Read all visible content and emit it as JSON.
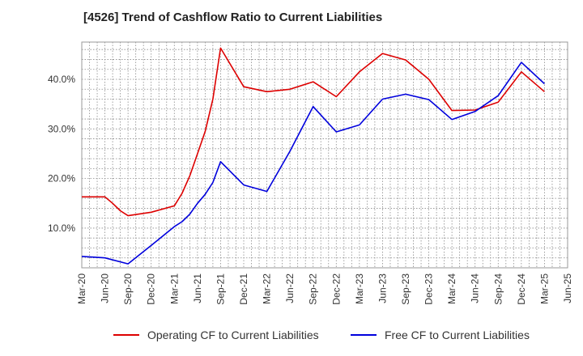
{
  "chart_data": {
    "type": "line",
    "title": "[4526]  Trend of Cashflow Ratio to Current Liabilities",
    "x_ticks": [
      "Mar-20",
      "Jun-20",
      "Sep-20",
      "Dec-20",
      "Mar-21",
      "Jun-21",
      "Sep-21",
      "Dec-21",
      "Mar-22",
      "Jun-22",
      "Sep-22",
      "Dec-22",
      "Mar-23",
      "Jun-23",
      "Sep-23",
      "Dec-23",
      "Mar-24",
      "Jun-24",
      "Sep-24",
      "Dec-24",
      "Mar-25",
      "Jun-25"
    ],
    "y_ticks": [
      "10.0%",
      "20.0%",
      "30.0%",
      "40.0%"
    ],
    "y_tick_values": [
      10,
      20,
      30,
      40
    ],
    "ylim": [
      2,
      47.5
    ],
    "xlim": [
      "Mar-20",
      "Jun-25"
    ],
    "grid": true,
    "legend_position": "bottom",
    "series": [
      {
        "name": "Operating CF to Current Liabilities",
        "color": "#dd0000",
        "points": [
          [
            "Mar-20",
            16.3
          ],
          [
            "Jun-20",
            16.3
          ],
          [
            "Jul-20",
            15.0
          ],
          [
            "Aug-20",
            13.5
          ],
          [
            "Sep-20",
            12.5
          ],
          [
            "Dec-20",
            13.2
          ],
          [
            "Mar-21",
            14.5
          ],
          [
            "Apr-21",
            17.0
          ],
          [
            "May-21",
            20.5
          ],
          [
            "Jun-21",
            25.0
          ],
          [
            "Jul-21",
            29.5
          ],
          [
            "Aug-21",
            36.0
          ],
          [
            "Sep-21",
            46.3
          ],
          [
            "Dec-21",
            38.5
          ],
          [
            "Mar-22",
            37.5
          ],
          [
            "Jun-22",
            38.0
          ],
          [
            "Sep-22",
            39.5
          ],
          [
            "Dec-22",
            36.5
          ],
          [
            "Mar-23",
            41.5
          ],
          [
            "Jun-23",
            45.2
          ],
          [
            "Sep-23",
            43.9
          ],
          [
            "Dec-23",
            40.0
          ],
          [
            "Mar-24",
            33.7
          ],
          [
            "Jun-24",
            33.8
          ],
          [
            "Sep-24",
            35.4
          ],
          [
            "Dec-24",
            41.5
          ],
          [
            "Mar-25",
            37.5
          ]
        ]
      },
      {
        "name": "Free CF to Current Liabilities",
        "color": "#0000dd",
        "points": [
          [
            "Mar-20",
            4.3
          ],
          [
            "Jun-20",
            4.0
          ],
          [
            "Sep-20",
            2.8
          ],
          [
            "Dec-20",
            6.5
          ],
          [
            "Mar-21",
            10.3
          ],
          [
            "Apr-21",
            11.3
          ],
          [
            "May-21",
            12.8
          ],
          [
            "Jun-21",
            15.0
          ],
          [
            "Jul-21",
            16.8
          ],
          [
            "Aug-21",
            19.2
          ],
          [
            "Sep-21",
            23.4
          ],
          [
            "Dec-21",
            18.7
          ],
          [
            "Mar-22",
            17.4
          ],
          [
            "Jun-22",
            25.5
          ],
          [
            "Sep-22",
            34.5
          ],
          [
            "Dec-22",
            29.4
          ],
          [
            "Mar-23",
            30.8
          ],
          [
            "Jun-23",
            36.0
          ],
          [
            "Sep-23",
            37.0
          ],
          [
            "Dec-23",
            35.9
          ],
          [
            "Mar-24",
            31.9
          ],
          [
            "Jun-24",
            33.5
          ],
          [
            "Sep-24",
            36.7
          ],
          [
            "Dec-24",
            43.4
          ],
          [
            "Mar-25",
            39.1
          ]
        ]
      }
    ]
  }
}
